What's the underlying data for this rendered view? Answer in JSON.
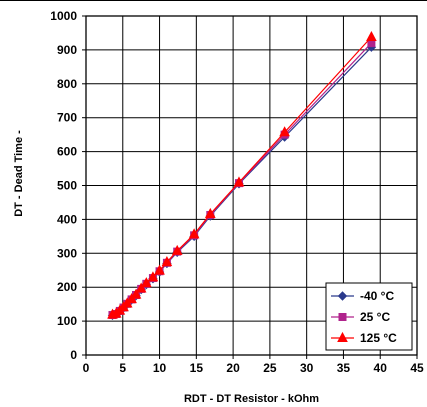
{
  "chart_data": {
    "type": "line",
    "title": "",
    "xlabel": "RDT - DT Resistor - kOhm",
    "ylabel": "DT - Dead Time -",
    "xlim": [
      0,
      45
    ],
    "ylim": [
      0,
      1000
    ],
    "xticks": [
      0,
      5,
      10,
      15,
      20,
      25,
      30,
      35,
      40,
      45
    ],
    "yticks": [
      0,
      100,
      200,
      300,
      400,
      500,
      600,
      700,
      800,
      900,
      1000
    ],
    "grid": true,
    "legend_position": "bottom-right",
    "series": [
      {
        "name": "-40 °C",
        "color": "#2b3a8c",
        "marker": "diamond",
        "x": [
          3.6,
          4.1,
          4.6,
          5.1,
          5.6,
          6.2,
          6.8,
          7.5,
          8.2,
          9.1,
          10.0,
          11.0,
          12.4,
          14.7,
          16.9,
          20.8,
          27.0,
          38.8
        ],
        "y": [
          117,
          120,
          129,
          139,
          150,
          163,
          175,
          193,
          208,
          225,
          245,
          270,
          303,
          350,
          410,
          505,
          643,
          908
        ]
      },
      {
        "name": "25 °C",
        "color": "#b0238c",
        "marker": "square",
        "x": [
          3.6,
          4.1,
          4.6,
          5.1,
          5.6,
          6.2,
          6.8,
          7.5,
          8.2,
          9.1,
          10.0,
          11.0,
          12.4,
          14.7,
          16.9,
          20.8,
          27.0,
          38.8
        ],
        "y": [
          118,
          121,
          130,
          140,
          151,
          164,
          177,
          195,
          210,
          227,
          247,
          272,
          305,
          353,
          413,
          507,
          650,
          920
        ]
      },
      {
        "name": "125 °C",
        "color": "#ff0000",
        "marker": "triangle",
        "x": [
          3.6,
          4.1,
          4.6,
          5.1,
          5.6,
          6.2,
          6.8,
          7.5,
          8.2,
          9.1,
          10.0,
          11.0,
          12.4,
          14.7,
          16.9,
          20.8,
          27.0,
          38.8
        ],
        "y": [
          119,
          122,
          131,
          141,
          152,
          165,
          178,
          196,
          212,
          229,
          249,
          274,
          307,
          356,
          416,
          509,
          657,
          938
        ]
      }
    ]
  }
}
